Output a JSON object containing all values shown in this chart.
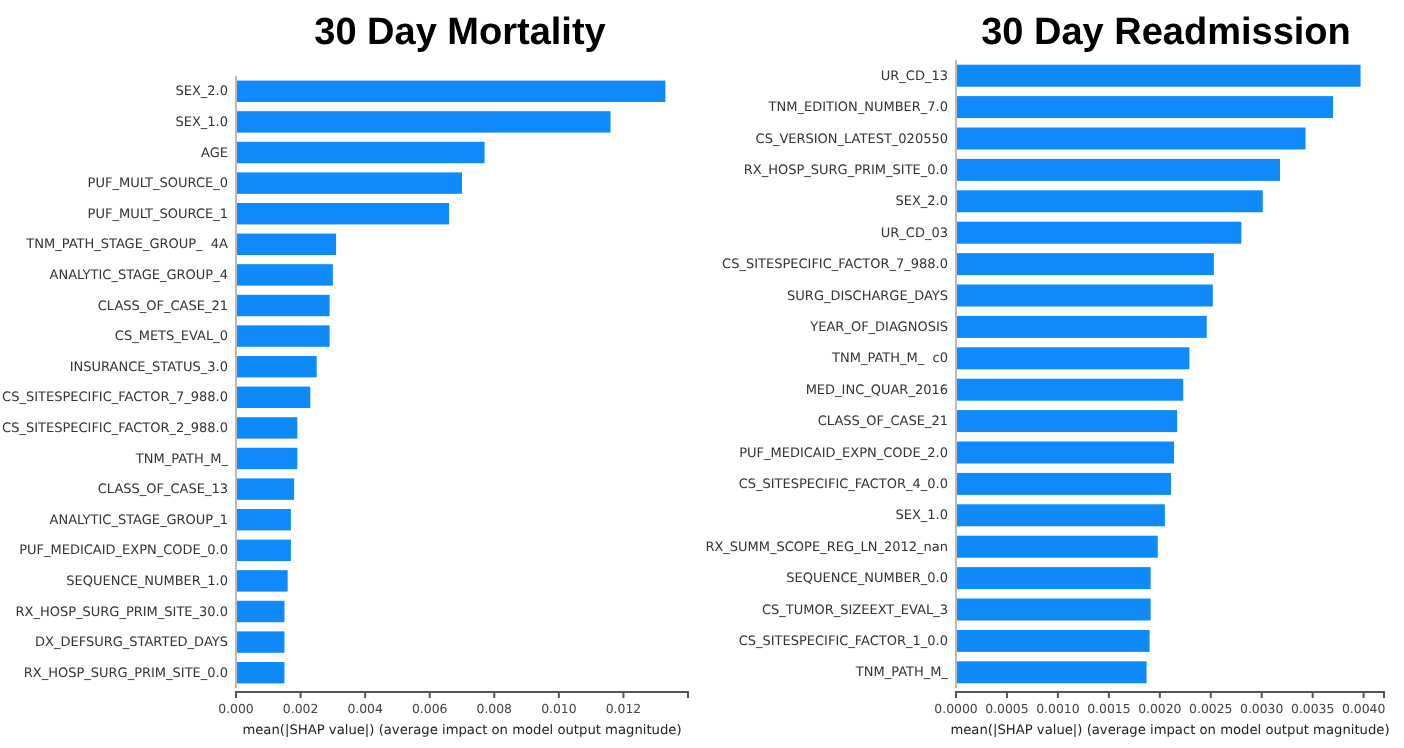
{
  "chart_data": [
    {
      "type": "bar",
      "orientation": "horizontal",
      "title": "30 Day Mortality",
      "xlabel": "mean(|SHAP value|) (average impact on model output magnitude)",
      "color": "#0f8afa",
      "categories": [
        "SEX_2.0",
        "SEX_1.0",
        "AGE",
        "PUF_MULT_SOURCE_0",
        "PUF_MULT_SOURCE_1",
        "TNM_PATH_STAGE_GROUP_  4A",
        "ANALYTIC_STAGE_GROUP_4",
        "CLASS_OF_CASE_21",
        "CS_METS_EVAL_0",
        "INSURANCE_STATUS_3.0",
        "CS_SITESPECIFIC_FACTOR_7_988.0",
        "CS_SITESPECIFIC_FACTOR_2_988.0",
        "TNM_PATH_M_",
        "CLASS_OF_CASE_13",
        "ANALYTIC_STAGE_GROUP_1",
        "PUF_MEDICAID_EXPN_CODE_0.0",
        "SEQUENCE_NUMBER_1.0",
        "RX_HOSP_SURG_PRIM_SITE_30.0",
        "DX_DEFSURG_STARTED_DAYS",
        "RX_HOSP_SURG_PRIM_SITE_0.0"
      ],
      "values": [
        0.0133,
        0.0116,
        0.0077,
        0.007,
        0.0066,
        0.0031,
        0.003,
        0.0029,
        0.0029,
        0.0025,
        0.0023,
        0.0019,
        0.0019,
        0.0018,
        0.0017,
        0.0017,
        0.0016,
        0.0015,
        0.0015,
        0.0015
      ],
      "xlim": [
        0,
        0.014
      ],
      "xticks": [
        {
          "value": 0,
          "label": "0.000"
        },
        {
          "value": 0.002,
          "label": "0.002"
        },
        {
          "value": 0.004,
          "label": "0.004"
        },
        {
          "value": 0.006,
          "label": "0.006"
        },
        {
          "value": 0.008,
          "label": "0.008"
        },
        {
          "value": 0.01,
          "label": "0.010"
        },
        {
          "value": 0.012,
          "label": "0.012"
        }
      ]
    },
    {
      "type": "bar",
      "orientation": "horizontal",
      "title": "30 Day Readmission",
      "xlabel": "mean(|SHAP value|) (average impact on model output magnitude)",
      "color": "#0f8afa",
      "categories": [
        "UR_CD_13",
        "TNM_EDITION_NUMBER_7.0",
        "CS_VERSION_LATEST_020550",
        "RX_HOSP_SURG_PRIM_SITE_0.0",
        "SEX_2.0",
        "UR_CD_03",
        "CS_SITESPECIFIC_FACTOR_7_988.0",
        "SURG_DISCHARGE_DAYS",
        "YEAR_OF_DIAGNOSIS",
        "TNM_PATH_M_  c0",
        "MED_INC_QUAR_2016",
        "CLASS_OF_CASE_21",
        "PUF_MEDICAID_EXPN_CODE_2.0",
        "CS_SITESPECIFIC_FACTOR_4_0.0",
        "SEX_1.0",
        "RX_SUMM_SCOPE_REG_LN_2012_nan",
        "SEQUENCE_NUMBER_0.0",
        "CS_TUMOR_SIZEEXT_EVAL_3",
        "CS_SITESPECIFIC_FACTOR_1_0.0",
        "TNM_PATH_M_"
      ],
      "values": [
        0.00397,
        0.0037,
        0.00343,
        0.00318,
        0.00301,
        0.0028,
        0.00253,
        0.00252,
        0.00246,
        0.00229,
        0.00223,
        0.00217,
        0.00214,
        0.00211,
        0.00205,
        0.00198,
        0.00191,
        0.00191,
        0.0019,
        0.00187
      ],
      "xlim": [
        0,
        0.0042
      ],
      "xticks": [
        {
          "value": 0,
          "label": "0.0000"
        },
        {
          "value": 0.0005,
          "label": "0.0005"
        },
        {
          "value": 0.001,
          "label": "0.0010"
        },
        {
          "value": 0.0015,
          "label": "0.0015"
        },
        {
          "value": 0.002,
          "label": "0.0020"
        },
        {
          "value": 0.0025,
          "label": "0.0025"
        },
        {
          "value": 0.003,
          "label": "0.0030"
        },
        {
          "value": 0.0035,
          "label": "0.0035"
        },
        {
          "value": 0.004,
          "label": "0.0040"
        }
      ]
    }
  ]
}
